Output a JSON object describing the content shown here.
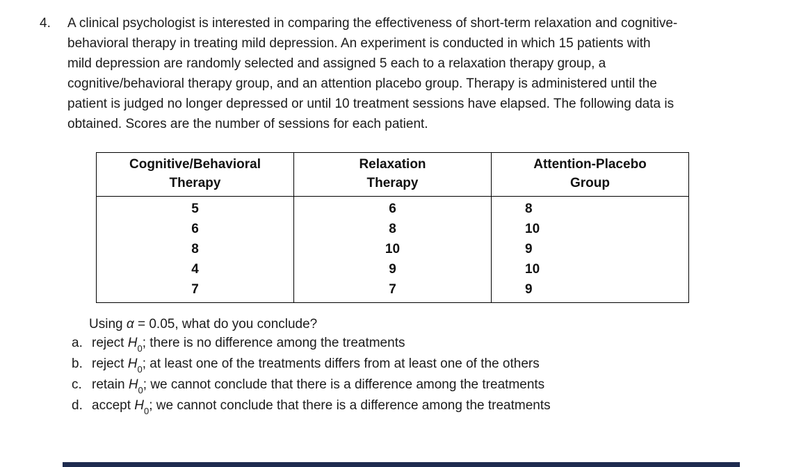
{
  "question": {
    "number": "4.",
    "intro_lines": [
      "A clinical psychologist is interested in comparing the effectiveness of short-term relaxation and cognitive-",
      "behavioral therapy in treating mild depression. An experiment is conducted in which 15 patients with",
      "mild depression are randomly selected and assigned 5 each to a relaxation therapy group, a",
      "cognitive/behavioral therapy group, and an attention placebo group. Therapy is administered until the",
      "patient is judged no longer depressed or until 10 treatment sessions have elapsed. The following data is",
      "obtained. Scores are the number of sessions for each patient."
    ]
  },
  "table": {
    "headers": [
      {
        "line1": "Cognitive/Behavioral",
        "line2": "Therapy"
      },
      {
        "line1": "Relaxation",
        "line2": "Therapy"
      },
      {
        "line1": "Attention-Placebo",
        "line2": "Group"
      }
    ],
    "rows": [
      [
        "5",
        "6",
        "8"
      ],
      [
        "6",
        "8",
        "10"
      ],
      [
        "8",
        "10",
        "9"
      ],
      [
        "4",
        "9",
        "10"
      ],
      [
        "7",
        "7",
        "9"
      ]
    ]
  },
  "prompt": {
    "prefix": "Using ",
    "alpha": "α",
    "rest": " = 0.05, what do you conclude?"
  },
  "options": [
    {
      "letter": "a.",
      "verb": "reject ",
      "h": "H",
      "sub": "0",
      "rest": "; there is no difference among the treatments"
    },
    {
      "letter": "b.",
      "verb": "reject ",
      "h": "H",
      "sub": "0",
      "rest": "; at least one of the treatments differs from at least one of the others"
    },
    {
      "letter": "c.",
      "verb": "retain ",
      "h": "H",
      "sub": "0",
      "rest": "; we cannot conclude that there is a difference among the treatments"
    },
    {
      "letter": "d.",
      "verb": "accept ",
      "h": "H",
      "sub": "0",
      "rest": "; we cannot conclude that there is a difference among the treatments"
    }
  ],
  "colors": {
    "background": "#ffffff",
    "text": "#1b1b1b",
    "table_border": "#000000",
    "bottom_bar": "#1e2b4f"
  }
}
